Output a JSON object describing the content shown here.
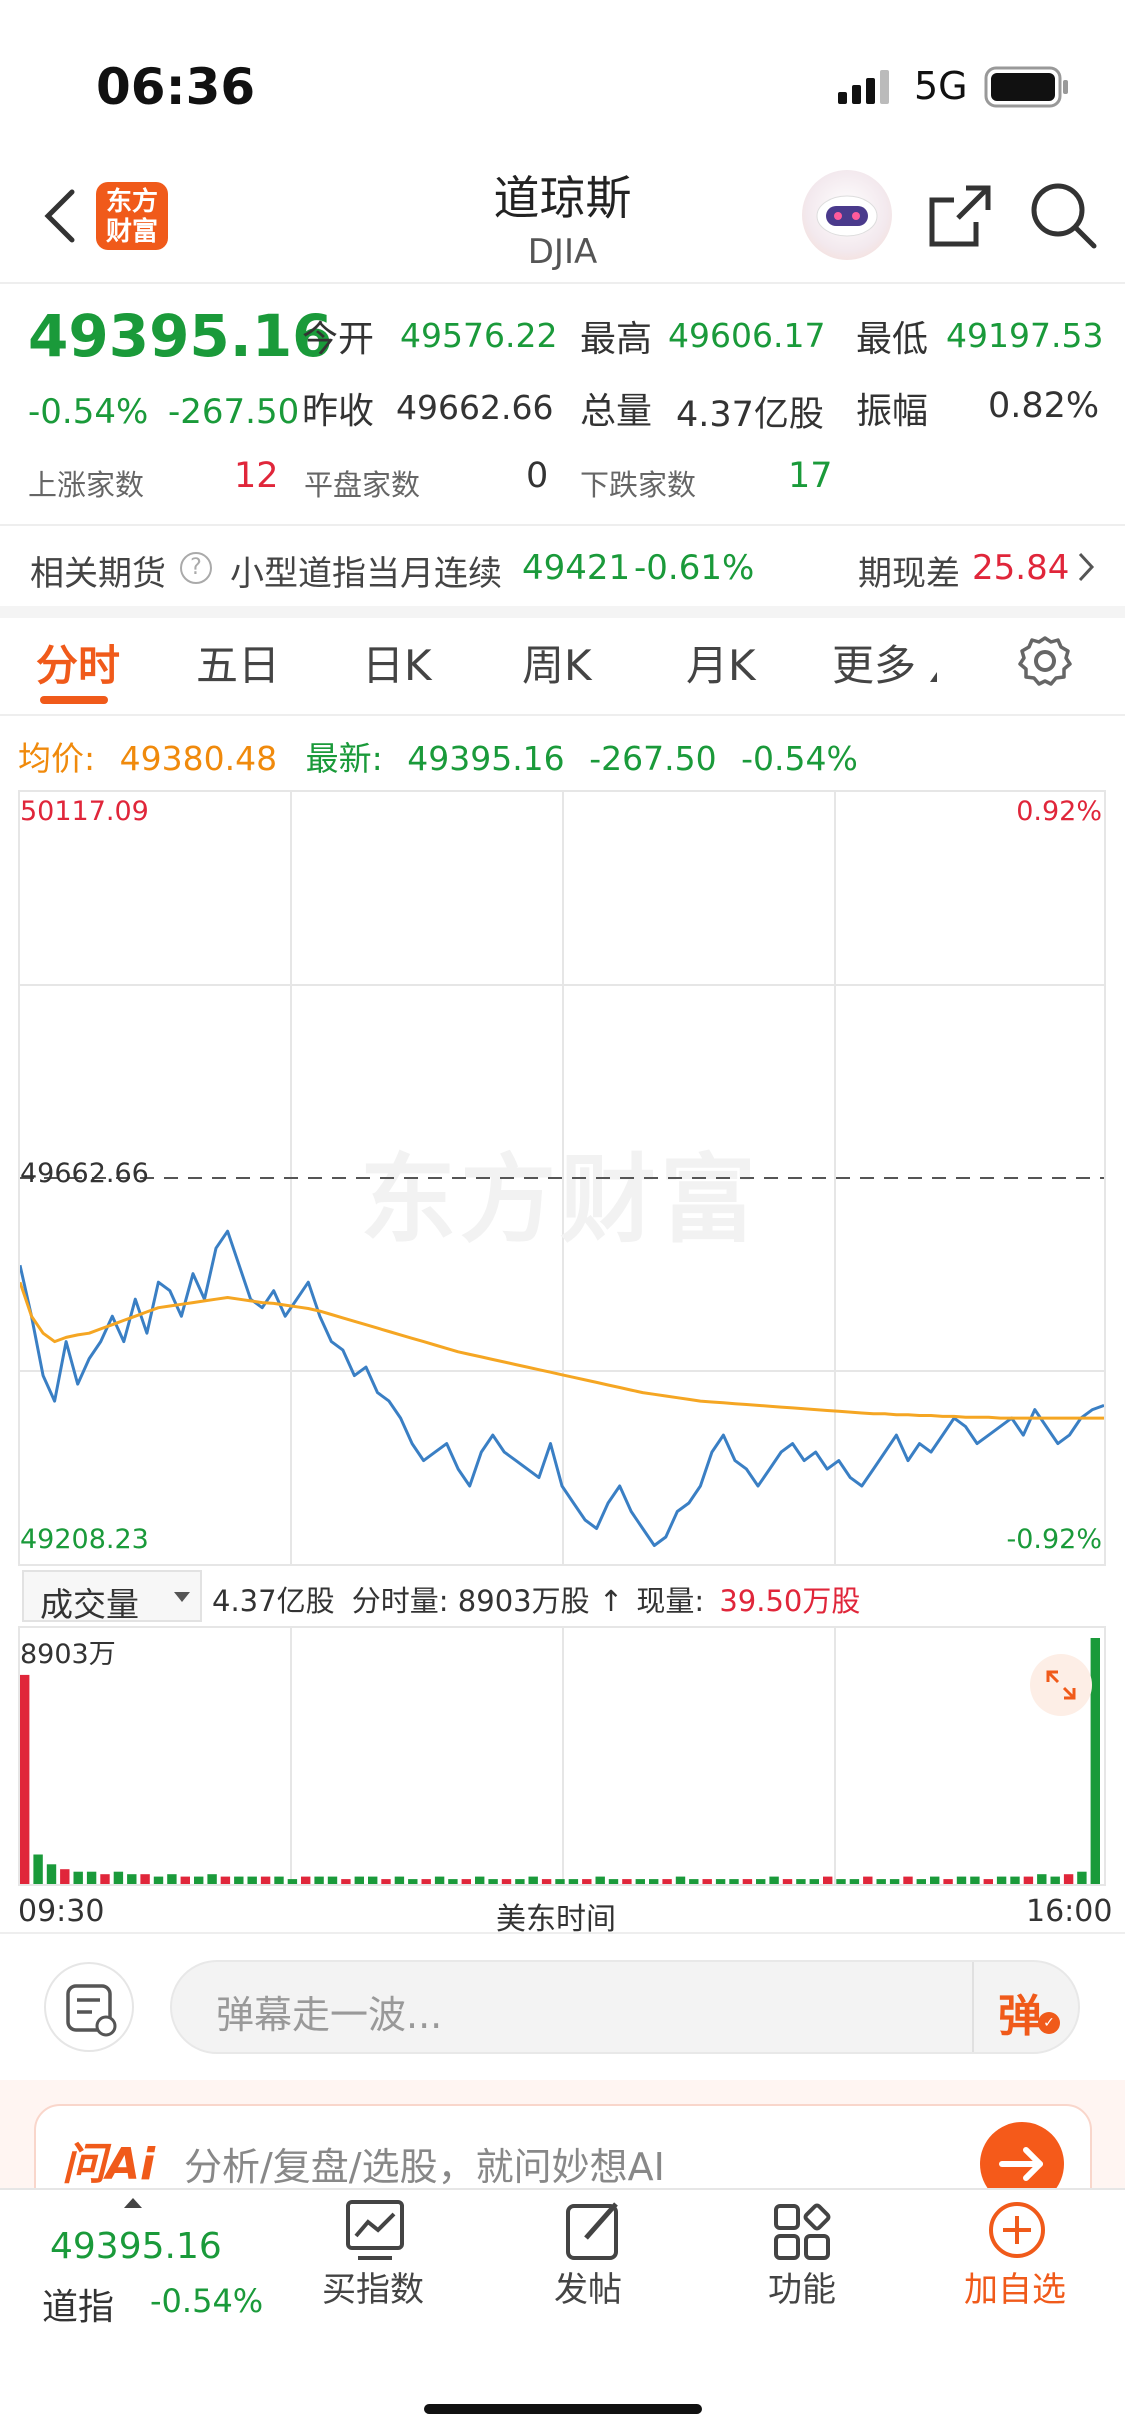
{
  "status": {
    "time": "06:36",
    "network": "5G"
  },
  "header": {
    "logo_text": "东方财富",
    "title": "道琼斯",
    "subtitle": "DJIA"
  },
  "quote": {
    "price": "49395.16",
    "change_pct": "-0.54%",
    "change": "-267.50",
    "open_label": "今开",
    "open": "49576.22",
    "high_label": "最高",
    "high": "49606.17",
    "low_label": "最低",
    "low": "49197.53",
    "prev_close_label": "昨收",
    "prev_close": "49662.66",
    "volume_label": "总量",
    "volume": "4.37亿股",
    "amplitude_label": "振幅",
    "amplitude": "0.82%",
    "up_label": "上涨家数",
    "up_count": "12",
    "flat_label": "平盘家数",
    "flat_count": "0",
    "down_label": "下跌家数",
    "down_count": "17"
  },
  "futures": {
    "label": "相关期货",
    "help_icon": "?",
    "name": "小型道指当月连续",
    "price": "49421",
    "change": "-0.61%",
    "basis_label": "期现差",
    "basis": "25.84"
  },
  "tabs": [
    "分时",
    "五日",
    "日K",
    "周K",
    "月K",
    "更多"
  ],
  "chart_header": {
    "avg_label": "均价:",
    "avg_value": "49380.48",
    "latest_label": "最新:",
    "latest_value": "49395.16",
    "latest_change": "-267.50",
    "latest_pct": "-0.54%"
  },
  "chart_data": {
    "type": "line",
    "y_top_label": "50117.09",
    "y_mid_label": "49662.66",
    "y_bottom_label": "49208.23",
    "pct_top_label": "0.92%",
    "pct_bottom_label": "-0.92%",
    "ylim": [
      49208.23,
      50117.09
    ],
    "reference": 49662.66,
    "watermark": "东方财富",
    "series": [
      {
        "name": "最新",
        "color": "#3a7fc4",
        "values": [
          49560,
          49500,
          49430,
          49400,
          49470,
          49420,
          49450,
          49470,
          49500,
          49470,
          49520,
          49480,
          49540,
          49530,
          49500,
          49550,
          49520,
          49580,
          49600,
          49560,
          49520,
          49510,
          49530,
          49500,
          49520,
          49540,
          49500,
          49470,
          49460,
          49430,
          49440,
          49410,
          49400,
          49380,
          49350,
          49330,
          49340,
          49350,
          49320,
          49300,
          49340,
          49360,
          49340,
          49330,
          49320,
          49310,
          49350,
          49300,
          49280,
          49260,
          49250,
          49280,
          49300,
          49270,
          49250,
          49230,
          49240,
          49270,
          49280,
          49300,
          49340,
          49360,
          49330,
          49320,
          49300,
          49320,
          49340,
          49350,
          49330,
          49340,
          49320,
          49330,
          49310,
          49300,
          49320,
          49340,
          49360,
          49330,
          49350,
          49340,
          49360,
          49380,
          49370,
          49350,
          49360,
          49370,
          49380,
          49360,
          49390,
          49370,
          49350,
          49360,
          49380,
          49390,
          49395
        ]
      },
      {
        "name": "均价",
        "color": "#f5a623",
        "values": [
          49540,
          49500,
          49480,
          49470,
          49475,
          49478,
          49480,
          49485,
          49490,
          49495,
          49500,
          49505,
          49510,
          49512,
          49514,
          49516,
          49518,
          49520,
          49522,
          49520,
          49518,
          49516,
          49515,
          49513,
          49511,
          49509,
          49506,
          49502,
          49498,
          49494,
          49490,
          49486,
          49482,
          49478,
          49474,
          49470,
          49466,
          49462,
          49458,
          49455,
          49452,
          49449,
          49446,
          49443,
          49440,
          49437,
          49434,
          49431,
          49428,
          49425,
          49422,
          49419,
          49416,
          49413,
          49410,
          49408,
          49406,
          49404,
          49402,
          49400,
          49399,
          49398,
          49397,
          49396,
          49395,
          49394,
          49393,
          49392,
          49391,
          49390,
          49389,
          49388,
          49387,
          49386,
          49385,
          49385,
          49384,
          49384,
          49383,
          49383,
          49382,
          49382,
          49381,
          49381,
          49381,
          49380,
          49380,
          49380,
          49380,
          49380,
          49380,
          49380,
          49380,
          49380,
          49380
        ]
      }
    ],
    "x_start": "09:30",
    "x_end": "16:00",
    "x_mid": "美东时间"
  },
  "volume_bar": {
    "select_label": "成交量",
    "total": "4.37亿股",
    "period_label": "分时量:",
    "period_value": "8903万股",
    "arrow": "↑",
    "current_label": "现量:",
    "current_value": "39.50万股",
    "y_top_label": "8903万"
  },
  "volume_data": {
    "type": "bar",
    "values": [
      85,
      12,
      8,
      6,
      5,
      5,
      4,
      5,
      4,
      4,
      3,
      4,
      3,
      3,
      4,
      3,
      3,
      3,
      3,
      3,
      2,
      3,
      3,
      3,
      2,
      3,
      3,
      2,
      3,
      2,
      2,
      3,
      2,
      2,
      3,
      2,
      2,
      2,
      3,
      2,
      2,
      2,
      2,
      3,
      2,
      2,
      2,
      2,
      2,
      3,
      2,
      2,
      2,
      2,
      2,
      2,
      3,
      2,
      2,
      2,
      3,
      2,
      2,
      3,
      2,
      2,
      3,
      2,
      3,
      2,
      3,
      3,
      2,
      3,
      3,
      3,
      4,
      3,
      4,
      5,
      100
    ]
  },
  "danmaku": {
    "placeholder": "弹幕走一波...",
    "button": "弹"
  },
  "ai_bar": {
    "logo": "问Ai",
    "text": "分析/复盘/选股，就问妙想AI"
  },
  "bottom_nav": {
    "quote_price": "49395.16",
    "quote_name": "道指",
    "quote_pct": "-0.54%",
    "items": [
      "买指数",
      "发帖",
      "功能",
      "加自选"
    ]
  }
}
